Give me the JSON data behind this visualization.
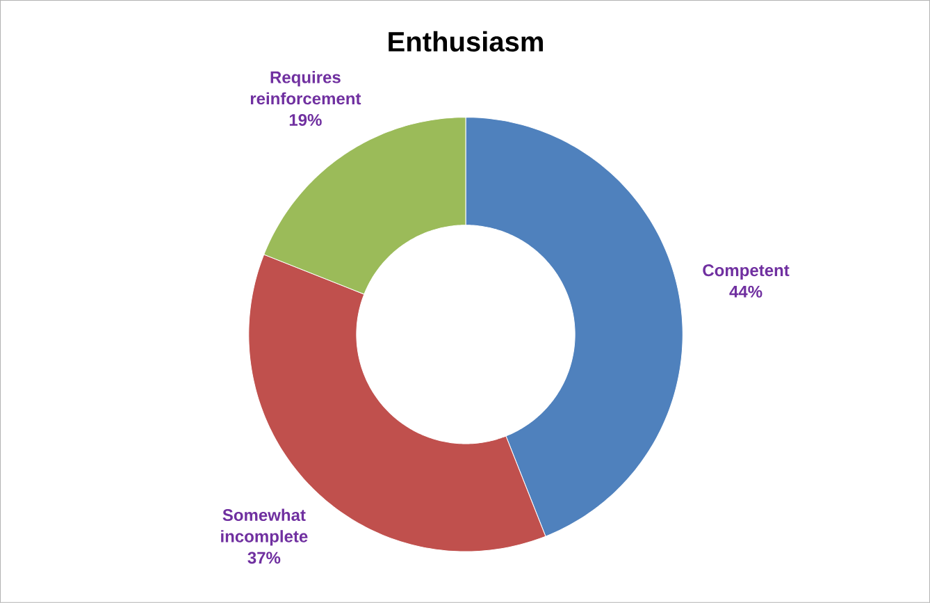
{
  "chart_data": {
    "type": "donut",
    "title": "Enthusiasm",
    "categories": [
      "Competent",
      "Somewhat incomplete",
      "Requires reinforcement"
    ],
    "values": [
      44,
      37,
      19
    ],
    "colors": [
      "#4f81bd",
      "#c0504d",
      "#9bbb59"
    ],
    "value_labels": [
      "44%",
      "37%",
      "19%"
    ]
  }
}
